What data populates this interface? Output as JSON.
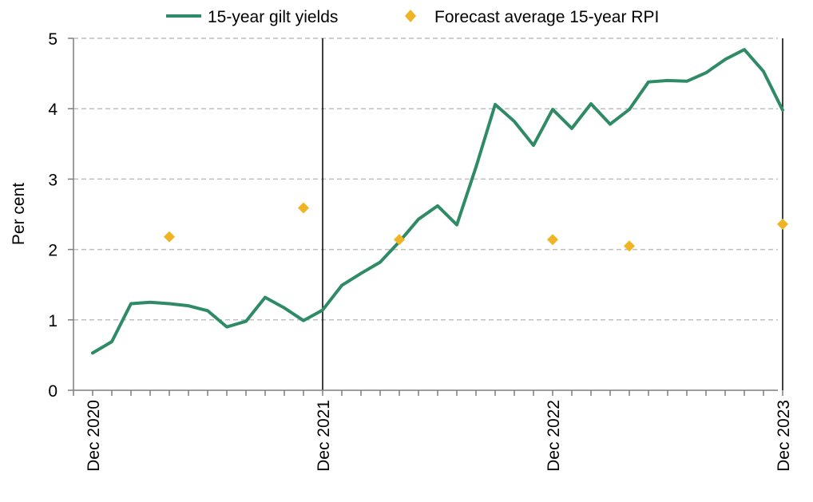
{
  "chart_data": {
    "type": "line",
    "title": "",
    "xlabel": "",
    "ylabel": "Per cent",
    "ylim": [
      0,
      5
    ],
    "yticks": [
      "0",
      "1",
      "2",
      "3",
      "4",
      "5"
    ],
    "x_start": "Nov 2020",
    "x_end": "Dec 2023",
    "xtick_labels": [
      {
        "label": "Dec 2020",
        "month_index": 1
      },
      {
        "label": "Dec 2021",
        "month_index": 13
      },
      {
        "label": "Dec 2022",
        "month_index": 25
      },
      {
        "label": "Dec 2023",
        "month_index": 37
      }
    ],
    "vertical_markers": [
      13,
      37
    ],
    "grid": "horizontal dashed",
    "legend_position": "top",
    "colors": {
      "gilt": "#2e8b66",
      "rpi": "#f0b323",
      "grid": "#bfbfbf",
      "axis": "#7f7f7f"
    },
    "series": [
      {
        "name": "15-year gilt yields",
        "type": "line",
        "x": [
          "Dec 2020",
          "Jan 2021",
          "Feb 2021",
          "Mar 2021",
          "Apr 2021",
          "May 2021",
          "Jun 2021",
          "Jul 2021",
          "Aug 2021",
          "Sep 2021",
          "Oct 2021",
          "Nov 2021",
          "Dec 2021",
          "Jan 2022",
          "Feb 2022",
          "Mar 2022",
          "Apr 2022",
          "May 2022",
          "Jun 2022",
          "Jul 2022",
          "Aug 2022",
          "Sep 2022",
          "Oct 2022",
          "Nov 2022",
          "Dec 2022",
          "Jan 2023",
          "Feb 2023",
          "Mar 2023",
          "Apr 2023",
          "May 2023",
          "Jun 2023",
          "Jul 2023",
          "Aug 2023",
          "Sep 2023",
          "Oct 2023",
          "Nov 2023",
          "Dec 2023"
        ],
        "values": [
          0.53,
          0.69,
          1.23,
          1.25,
          1.23,
          1.2,
          1.13,
          0.9,
          0.98,
          1.32,
          1.17,
          0.99,
          1.14,
          1.49,
          1.66,
          1.82,
          2.11,
          2.43,
          2.62,
          2.35,
          3.17,
          4.06,
          3.82,
          3.48,
          3.99,
          3.72,
          4.07,
          3.78,
          3.99,
          4.38,
          4.4,
          4.39,
          4.51,
          4.7,
          4.84,
          4.53,
          3.98
        ]
      },
      {
        "name": "Forecast average 15-year RPI",
        "type": "scatter",
        "x": [
          "Apr 2021",
          "Nov 2021",
          "Apr 2022",
          "Dec 2022",
          "Apr 2023",
          "Dec 2023"
        ],
        "values": [
          2.18,
          2.59,
          2.14,
          2.14,
          2.05,
          2.36
        ]
      }
    ]
  }
}
